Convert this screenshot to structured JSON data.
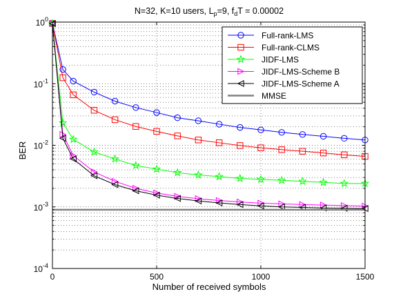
{
  "chart_data": {
    "type": "line",
    "title_parts": [
      "N=32, K=10 users, L",
      "p",
      "=9, f",
      "d",
      "T = 0.00002"
    ],
    "xlabel": "Number of received symbols",
    "ylabel": "BER",
    "xlim": [
      0,
      1500
    ],
    "ylim": [
      0.0001,
      1
    ],
    "yscale": "log",
    "x_ticks": [
      0,
      500,
      1000,
      1500
    ],
    "x_tick_labels": [
      "0",
      "500",
      "1000",
      "1500"
    ],
    "y_ticks": [
      0.0001,
      0.001,
      0.01,
      0.1,
      1
    ],
    "y_tick_labels": [
      {
        "base": "10",
        "exp": "-4"
      },
      {
        "base": "10",
        "exp": "-3"
      },
      {
        "base": "10",
        "exp": "-2"
      },
      {
        "base": "10",
        "exp": "-1"
      },
      {
        "base": "10",
        "exp": "0"
      }
    ],
    "grid": true,
    "legend_position": "top-right",
    "series": [
      {
        "name": "Full-rank-LMS",
        "color": "#0000ff",
        "marker": "circle",
        "x": [
          0,
          50,
          100,
          200,
          300,
          400,
          500,
          600,
          700,
          800,
          900,
          1000,
          1100,
          1200,
          1300,
          1400,
          1500
        ],
        "y": [
          0.95,
          0.17,
          0.11,
          0.073,
          0.052,
          0.041,
          0.034,
          0.028,
          0.025,
          0.022,
          0.0195,
          0.0178,
          0.0162,
          0.015,
          0.014,
          0.013,
          0.0122
        ]
      },
      {
        "name": "Full-rank-CLMS",
        "color": "#ff0000",
        "marker": "square",
        "x": [
          0,
          50,
          100,
          200,
          300,
          400,
          500,
          600,
          700,
          800,
          900,
          1000,
          1100,
          1200,
          1300,
          1400,
          1500
        ],
        "y": [
          0.95,
          0.125,
          0.066,
          0.037,
          0.026,
          0.0202,
          0.0168,
          0.0142,
          0.0122,
          0.011,
          0.0099,
          0.0091,
          0.0085,
          0.008,
          0.0075,
          0.007,
          0.0066
        ]
      },
      {
        "name": "JIDF-LMS",
        "color": "#00ff00",
        "marker": "star",
        "x": [
          0,
          50,
          100,
          200,
          300,
          400,
          500,
          600,
          700,
          800,
          900,
          1000,
          1100,
          1200,
          1300,
          1400,
          1500
        ],
        "y": [
          0.95,
          0.023,
          0.0125,
          0.0078,
          0.006,
          0.0047,
          0.0041,
          0.0036,
          0.0033,
          0.0031,
          0.0029,
          0.0028,
          0.0027,
          0.0026,
          0.0025,
          0.0024,
          0.0024
        ]
      },
      {
        "name": "JIDF-LMS-Scheme B",
        "color": "#ff00ff",
        "marker": "triangle-right",
        "x": [
          0,
          50,
          100,
          200,
          300,
          400,
          500,
          600,
          700,
          800,
          900,
          1000,
          1100,
          1200,
          1300,
          1400,
          1500
        ],
        "y": [
          0.95,
          0.015,
          0.0068,
          0.0037,
          0.0026,
          0.002,
          0.00168,
          0.00148,
          0.00136,
          0.00127,
          0.0012,
          0.00115,
          0.00112,
          0.00109,
          0.00107,
          0.00105,
          0.00103
        ]
      },
      {
        "name": "JIDF-LMS-Scheme A",
        "color": "#000000",
        "marker": "triangle-left",
        "x": [
          0,
          50,
          100,
          200,
          300,
          400,
          500,
          600,
          700,
          800,
          900,
          1000,
          1100,
          1200,
          1300,
          1400,
          1500
        ],
        "y": [
          0.95,
          0.013,
          0.006,
          0.0032,
          0.0023,
          0.00183,
          0.00155,
          0.00137,
          0.00125,
          0.00116,
          0.00109,
          0.00104,
          0.001,
          0.00098,
          0.00096,
          0.00095,
          0.00094
        ]
      },
      {
        "name": "MMSE",
        "color": "#808080",
        "marker": "none",
        "x": [
          0,
          1500
        ],
        "y": [
          0.0009,
          0.0009
        ]
      }
    ]
  }
}
